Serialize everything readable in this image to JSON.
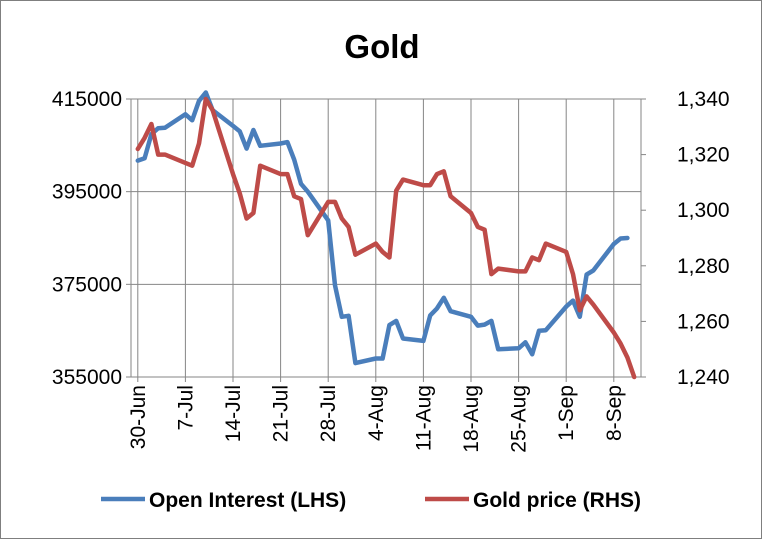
{
  "colors": {
    "open_interest": "#4a7ebb",
    "gold_price": "#be4b48",
    "grid": "#868686",
    "axis": "#868686"
  },
  "chart_data": {
    "type": "line",
    "title": "Gold",
    "x_axis": {
      "type": "date",
      "min": "2014-06-29",
      "max": "2014-09-12",
      "tick_labels": [
        "30-Jun",
        "7-Jul",
        "14-Jul",
        "21-Jul",
        "28-Jul",
        "4-Aug",
        "11-Aug",
        "18-Aug",
        "25-Aug",
        "1-Sep",
        "8-Sep"
      ],
      "tick_dates": [
        "2014-06-30",
        "2014-07-07",
        "2014-07-14",
        "2014-07-21",
        "2014-07-28",
        "2014-08-04",
        "2014-08-11",
        "2014-08-18",
        "2014-08-25",
        "2014-09-01",
        "2014-09-08"
      ]
    },
    "y_left": {
      "min": 355000,
      "max": 415000,
      "tick_labels": [
        "355000",
        "375000",
        "395000",
        "415000"
      ],
      "tick_values": [
        355000,
        375000,
        395000,
        415000
      ]
    },
    "y_right": {
      "min": 1240,
      "max": 1340,
      "tick_labels": [
        "1,240",
        "1,260",
        "1,280",
        "1,300",
        "1,320",
        "1,340"
      ],
      "tick_values": [
        1240,
        1260,
        1280,
        1300,
        1320,
        1340
      ]
    },
    "grid": true,
    "legend": {
      "position": "bottom",
      "entries": [
        "Open Interest (LHS)",
        "Gold price (RHS)"
      ]
    },
    "series": [
      {
        "name": "Open Interest (LHS)",
        "axis": "left",
        "color": "#4a7ebb",
        "points": [
          [
            "2014-06-30",
            401700
          ],
          [
            "2014-07-01",
            402200
          ],
          [
            "2014-07-02",
            407400
          ],
          [
            "2014-07-03",
            408700
          ],
          [
            "2014-07-04",
            408800
          ],
          [
            "2014-07-07",
            411700
          ],
          [
            "2014-07-08",
            410400
          ],
          [
            "2014-07-09",
            414600
          ],
          [
            "2014-07-10",
            416400
          ],
          [
            "2014-07-11",
            412600
          ],
          [
            "2014-07-14",
            409200
          ],
          [
            "2014-07-15",
            408000
          ],
          [
            "2014-07-16",
            404300
          ],
          [
            "2014-07-17",
            408300
          ],
          [
            "2014-07-18",
            404900
          ],
          [
            "2014-07-21",
            405400
          ],
          [
            "2014-07-22",
            405700
          ],
          [
            "2014-07-23",
            401900
          ],
          [
            "2014-07-24",
            396700
          ],
          [
            "2014-07-25",
            395000
          ],
          [
            "2014-07-28",
            388800
          ],
          [
            "2014-07-29",
            374800
          ],
          [
            "2014-07-30",
            368000
          ],
          [
            "2014-07-31",
            368200
          ],
          [
            "2014-08-01",
            358000
          ],
          [
            "2014-08-04",
            359000
          ],
          [
            "2014-08-05",
            359000
          ],
          [
            "2014-08-06",
            366200
          ],
          [
            "2014-08-07",
            367100
          ],
          [
            "2014-08-08",
            363300
          ],
          [
            "2014-08-11",
            362800
          ],
          [
            "2014-08-12",
            368300
          ],
          [
            "2014-08-13",
            369800
          ],
          [
            "2014-08-14",
            372100
          ],
          [
            "2014-08-15",
            369200
          ],
          [
            "2014-08-18",
            368000
          ],
          [
            "2014-08-19",
            366100
          ],
          [
            "2014-08-20",
            366300
          ],
          [
            "2014-08-21",
            367100
          ],
          [
            "2014-08-22",
            361000
          ],
          [
            "2014-08-25",
            361200
          ],
          [
            "2014-08-26",
            362500
          ],
          [
            "2014-08-27",
            359900
          ],
          [
            "2014-08-28",
            365000
          ],
          [
            "2014-08-29",
            365100
          ],
          [
            "2014-09-01",
            370200
          ],
          [
            "2014-09-02",
            371500
          ],
          [
            "2014-09-03",
            368000
          ],
          [
            "2014-09-04",
            377100
          ],
          [
            "2014-09-05",
            378000
          ],
          [
            "2014-09-08",
            383700
          ],
          [
            "2014-09-09",
            384900
          ],
          [
            "2014-09-10",
            385000
          ]
        ]
      },
      {
        "name": "Gold price (RHS)",
        "axis": "right",
        "color": "#be4b48",
        "points": [
          [
            "2014-06-30",
            1322
          ],
          [
            "2014-07-01",
            1326
          ],
          [
            "2014-07-02",
            1331
          ],
          [
            "2014-07-03",
            1320
          ],
          [
            "2014-07-04",
            1320
          ],
          [
            "2014-07-07",
            1317
          ],
          [
            "2014-07-08",
            1316
          ],
          [
            "2014-07-09",
            1324
          ],
          [
            "2014-07-10",
            1340
          ],
          [
            "2014-07-11",
            1336
          ],
          [
            "2014-07-14",
            1313
          ],
          [
            "2014-07-15",
            1306
          ],
          [
            "2014-07-16",
            1297
          ],
          [
            "2014-07-17",
            1299
          ],
          [
            "2014-07-18",
            1316
          ],
          [
            "2014-07-21",
            1313
          ],
          [
            "2014-07-22",
            1313
          ],
          [
            "2014-07-23",
            1305
          ],
          [
            "2014-07-24",
            1304
          ],
          [
            "2014-07-25",
            1291
          ],
          [
            "2014-07-28",
            1303
          ],
          [
            "2014-07-29",
            1303
          ],
          [
            "2014-07-30",
            1297
          ],
          [
            "2014-07-31",
            1294
          ],
          [
            "2014-08-01",
            1284
          ],
          [
            "2014-08-04",
            1288
          ],
          [
            "2014-08-05",
            1285
          ],
          [
            "2014-08-06",
            1283
          ],
          [
            "2014-08-07",
            1307
          ],
          [
            "2014-08-08",
            1311
          ],
          [
            "2014-08-11",
            1309
          ],
          [
            "2014-08-12",
            1309
          ],
          [
            "2014-08-13",
            1313
          ],
          [
            "2014-08-14",
            1314
          ],
          [
            "2014-08-15",
            1305
          ],
          [
            "2014-08-18",
            1299
          ],
          [
            "2014-08-19",
            1294
          ],
          [
            "2014-08-20",
            1293
          ],
          [
            "2014-08-21",
            1277
          ],
          [
            "2014-08-22",
            1279
          ],
          [
            "2014-08-25",
            1278
          ],
          [
            "2014-08-26",
            1278
          ],
          [
            "2014-08-27",
            1283
          ],
          [
            "2014-08-28",
            1282
          ],
          [
            "2014-08-29",
            1288
          ],
          [
            "2014-09-01",
            1285
          ],
          [
            "2014-09-02",
            1277
          ],
          [
            "2014-09-03",
            1264
          ],
          [
            "2014-09-04",
            1269
          ],
          [
            "2014-09-05",
            1266
          ],
          [
            "2014-09-08",
            1256
          ],
          [
            "2014-09-09",
            1252
          ],
          [
            "2014-09-10",
            1247
          ],
          [
            "2014-09-11",
            1240
          ]
        ]
      }
    ]
  }
}
